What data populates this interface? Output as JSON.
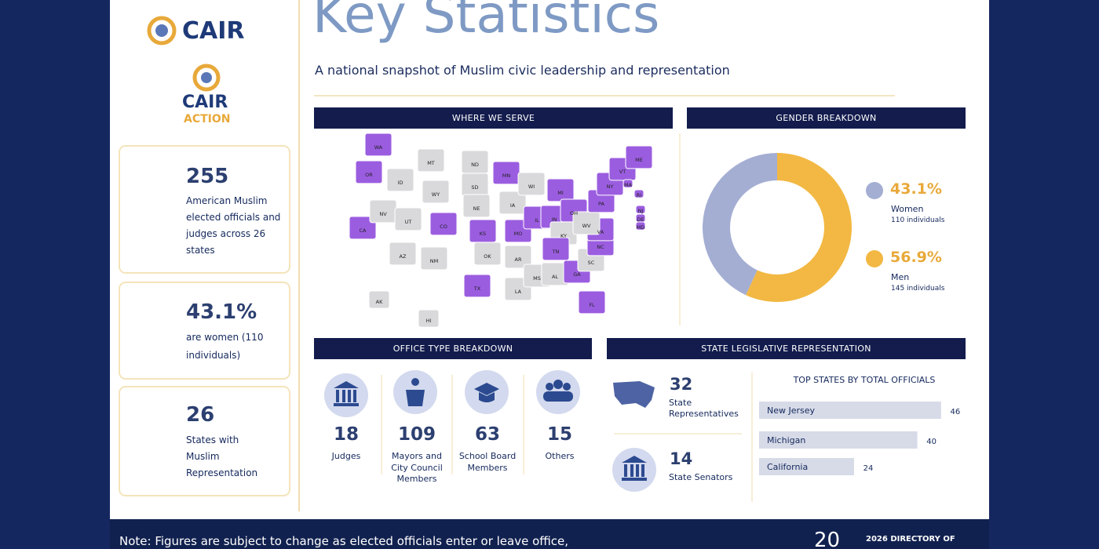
{
  "logos": {
    "cair": "CAIR",
    "cair_action_top": "CAIR",
    "cair_action_bottom": "ACTION"
  },
  "header": {
    "title": "Key Statistics",
    "subtitle": "A national snapshot of Muslim civic leadership and representation"
  },
  "highlights": [
    {
      "value": "255",
      "text": "American Muslim elected officials and judges across 26 states"
    },
    {
      "value": "43.1%",
      "text": "are women (110 individuals)"
    },
    {
      "value": "26",
      "text": "States with Muslim Representation"
    }
  ],
  "where_we_serve": {
    "title": "WHERE WE SERVE",
    "served_color": "#9b5de0",
    "other_color": "#d9d9db",
    "states": [
      {
        "label": "WA",
        "served": true
      },
      {
        "label": "OR",
        "served": true
      },
      {
        "label": "CA",
        "served": true
      },
      {
        "label": "NV",
        "served": false
      },
      {
        "label": "ID",
        "served": false
      },
      {
        "label": "MT",
        "served": false
      },
      {
        "label": "WY",
        "served": false
      },
      {
        "label": "UT",
        "served": false
      },
      {
        "label": "AZ",
        "served": false
      },
      {
        "label": "NM",
        "served": false
      },
      {
        "label": "CO",
        "served": true
      },
      {
        "label": "ND",
        "served": false
      },
      {
        "label": "SD",
        "served": false
      },
      {
        "label": "NE",
        "served": false
      },
      {
        "label": "KS",
        "served": true
      },
      {
        "label": "OK",
        "served": false
      },
      {
        "label": "TX",
        "served": true
      },
      {
        "label": "MN",
        "served": true
      },
      {
        "label": "IA",
        "served": false
      },
      {
        "label": "MO",
        "served": true
      },
      {
        "label": "AR",
        "served": false
      },
      {
        "label": "LA",
        "served": false
      },
      {
        "label": "WI",
        "served": false
      },
      {
        "label": "IL",
        "served": true
      },
      {
        "label": "MI",
        "served": true
      },
      {
        "label": "IN",
        "served": true
      },
      {
        "label": "OH",
        "served": true
      },
      {
        "label": "KY",
        "served": false
      },
      {
        "label": "TN",
        "served": true
      },
      {
        "label": "MS",
        "served": false
      },
      {
        "label": "AL",
        "served": false
      },
      {
        "label": "GA",
        "served": true
      },
      {
        "label": "FL",
        "served": true
      },
      {
        "label": "SC",
        "served": false
      },
      {
        "label": "NC",
        "served": true
      },
      {
        "label": "VA",
        "served": true
      },
      {
        "label": "WV",
        "served": false
      },
      {
        "label": "PA",
        "served": true
      },
      {
        "label": "NY",
        "served": true
      },
      {
        "label": "VT",
        "served": true
      },
      {
        "label": "ME",
        "served": true
      },
      {
        "label": "MA",
        "served": true
      },
      {
        "label": "RI",
        "served": true
      },
      {
        "label": "NJ",
        "served": true
      },
      {
        "label": "DE",
        "served": true
      },
      {
        "label": "MD",
        "served": true
      },
      {
        "label": "AK",
        "served": false
      },
      {
        "label": "HI",
        "served": false
      }
    ]
  },
  "chart_data": [
    {
      "type": "pie",
      "donut": true,
      "title": "GENDER BREAKDOWN",
      "categories": [
        "Women",
        "Men"
      ],
      "values": [
        43.1,
        56.9
      ],
      "value_labels": [
        "43.1%",
        "56.9%"
      ],
      "details": [
        "110 individuals",
        "145 individuals"
      ],
      "colors": [
        "#a4aed3",
        "#f2b843"
      ]
    },
    {
      "type": "bar",
      "orientation": "horizontal",
      "title": "TOP STATES BY TOTAL OFFICIALS",
      "categories": [
        "New Jersey",
        "Michigan",
        "California"
      ],
      "values": [
        46,
        40,
        24
      ],
      "color": "#d7dbe8"
    }
  ],
  "office_types": {
    "title": "OFFICE TYPE BREAKDOWN",
    "items": [
      {
        "value": "18",
        "label": "Judges"
      },
      {
        "value": "109",
        "label": "Mayors and City Council Members"
      },
      {
        "value": "63",
        "label": "School Board Members"
      },
      {
        "value": "15",
        "label": "Others"
      }
    ]
  },
  "state_legislative": {
    "title": "STATE LEGISLATIVE REPRESENTATION",
    "items": [
      {
        "value": "32",
        "label": "State Representatives"
      },
      {
        "value": "14",
        "label": "State Senators"
      }
    ]
  },
  "footer": {
    "note": "Note: Figures are subject to change as elected officials enter or leave office,",
    "page": "20",
    "directory": "2026 DIRECTORY OF"
  }
}
